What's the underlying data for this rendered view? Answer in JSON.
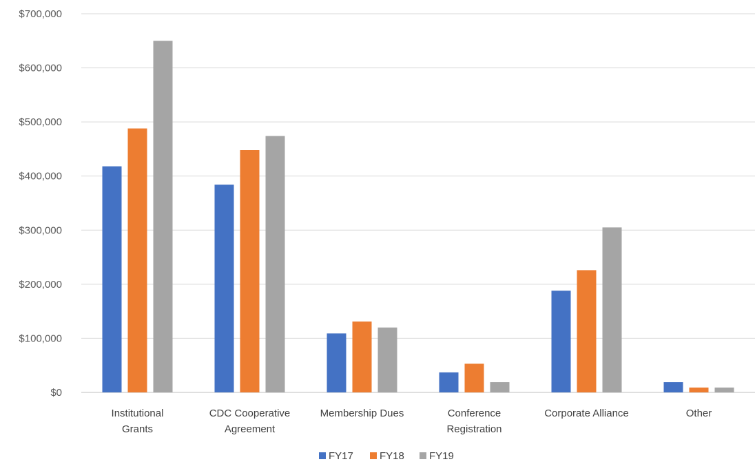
{
  "chart_data": {
    "type": "bar",
    "categories": [
      [
        "Institutional",
        "Grants"
      ],
      [
        "CDC Cooperative",
        "Agreement"
      ],
      [
        "Membership Dues"
      ],
      [
        "Conference",
        "Registration"
      ],
      [
        "Corporate Alliance"
      ],
      [
        "Other"
      ]
    ],
    "series": [
      {
        "name": "FY17",
        "color": "#4472C4",
        "values": [
          418000,
          384000,
          109000,
          37000,
          188000,
          19000
        ]
      },
      {
        "name": "FY18",
        "color": "#ED7D31",
        "values": [
          488000,
          448000,
          131000,
          53000,
          226000,
          9000
        ]
      },
      {
        "name": "FY19",
        "color": "#A5A5A5",
        "values": [
          650000,
          474000,
          120000,
          19000,
          305000,
          9000
        ]
      }
    ],
    "ylim": [
      0,
      700000
    ],
    "yticks": [
      0,
      100000,
      200000,
      300000,
      400000,
      500000,
      600000,
      700000
    ],
    "ytick_labels": [
      "$0",
      "$100,000",
      "$200,000",
      "$300,000",
      "$400,000",
      "$500,000",
      "$600,000",
      "$700,000"
    ],
    "grid": true,
    "legend": "bottom-center"
  }
}
